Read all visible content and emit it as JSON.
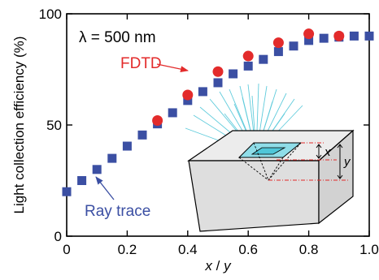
{
  "chart_data": {
    "type": "scatter",
    "xlabel": {
      "main": "x",
      "sep": "/",
      "end": "y"
    },
    "ylabel": "Light collection efficiency (%)",
    "xlim": [
      0,
      1.0
    ],
    "ylim": [
      0,
      100
    ],
    "x_ticks": [
      "0",
      "0.2",
      "0.4",
      "0.6",
      "0.8",
      "1.0"
    ],
    "y_ticks": [
      "0",
      "50",
      "100"
    ],
    "grid": false,
    "annotations": {
      "wavelength": "λ = 500 nm",
      "fdtd_label": "FDTD",
      "ray_label": "Ray trace",
      "inset_x": "x",
      "inset_y": "y"
    },
    "series": [
      {
        "name": "Ray trace",
        "marker": "square",
        "color": "#3b4fa3",
        "x": [
          0.0,
          0.05,
          0.1,
          0.15,
          0.2,
          0.25,
          0.3,
          0.35,
          0.4,
          0.45,
          0.5,
          0.55,
          0.6,
          0.65,
          0.7,
          0.75,
          0.8,
          0.85,
          0.9,
          0.95,
          1.0
        ],
        "y": [
          20,
          25,
          30,
          35,
          40.5,
          45.5,
          50.5,
          55.5,
          61,
          65,
          69,
          73,
          76.5,
          79.5,
          83,
          85.5,
          88,
          89,
          89.5,
          90,
          90
        ]
      },
      {
        "name": "FDTD",
        "marker": "circle",
        "color": "#e32b2b",
        "x": [
          0.3,
          0.4,
          0.5,
          0.6,
          0.7,
          0.8,
          0.9
        ],
        "y": [
          52,
          63.5,
          74,
          81,
          87,
          91,
          90
        ]
      }
    ]
  }
}
